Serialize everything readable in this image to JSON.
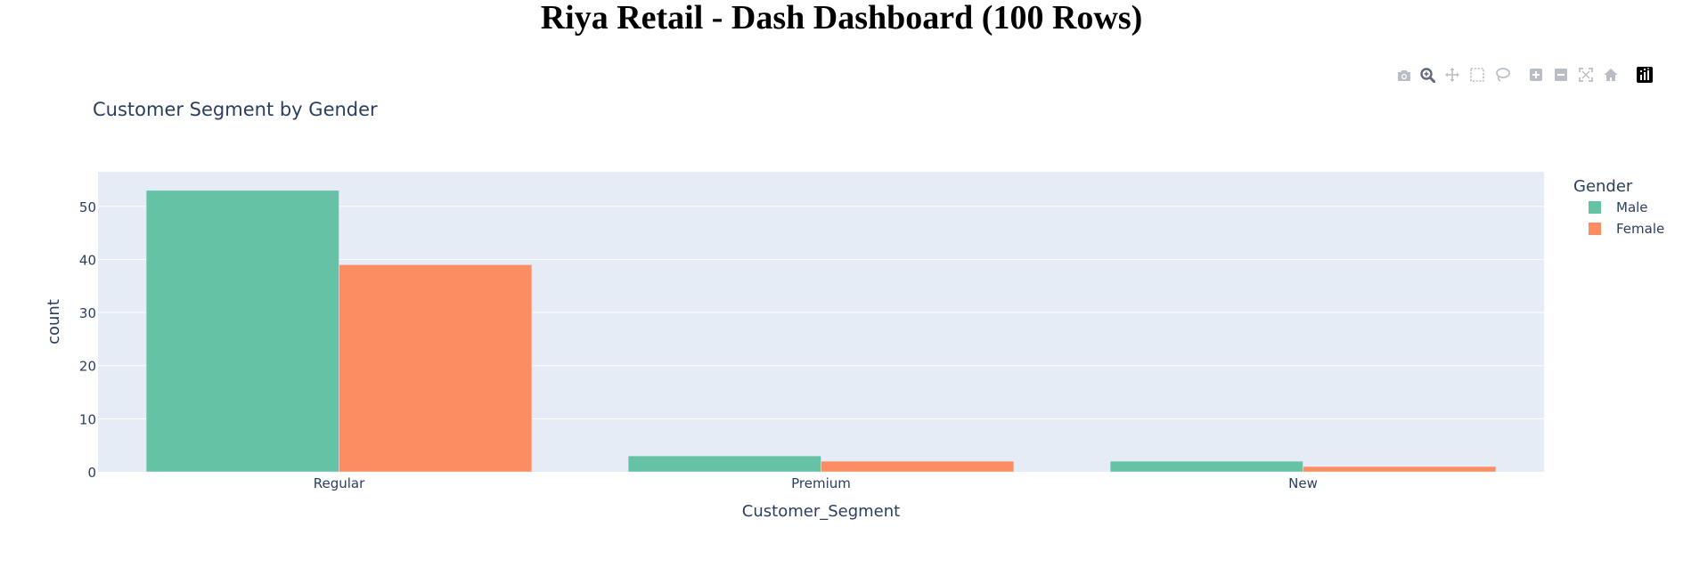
{
  "page": {
    "title": "Riya Retail - Dash Dashboard (100 Rows)"
  },
  "modebar": {
    "buttons": [
      {
        "icon": "camera-icon",
        "tooltip": "Download plot as a png"
      },
      {
        "icon": "zoom-icon",
        "tooltip": "Zoom",
        "active": true
      },
      {
        "icon": "pan-icon",
        "tooltip": "Pan"
      },
      {
        "icon": "box-select-icon",
        "tooltip": "Box Select"
      },
      {
        "icon": "lasso-select-icon",
        "tooltip": "Lasso Select"
      },
      {
        "icon": "zoom-in-icon",
        "tooltip": "Zoom in"
      },
      {
        "icon": "zoom-out-icon",
        "tooltip": "Zoom out"
      },
      {
        "icon": "autoscale-icon",
        "tooltip": "Autoscale"
      },
      {
        "icon": "reset-axes-icon",
        "tooltip": "Reset axes"
      },
      {
        "icon": "plotly-logo-icon",
        "tooltip": "Produced with Plotly"
      }
    ],
    "colors": {
      "icon": "#b9bec6",
      "icon_active": "#626b7a",
      "logo_bg": "#000000"
    }
  },
  "chart_data": {
    "type": "bar",
    "title": "Customer Segment by Gender",
    "xlabel": "Customer_Segment",
    "ylabel": "count",
    "categories": [
      "Regular",
      "Premium",
      "New"
    ],
    "series": [
      {
        "name": "Male",
        "values": [
          53,
          3,
          2
        ],
        "color": "#66c2a5"
      },
      {
        "name": "Female",
        "values": [
          39,
          2,
          1
        ],
        "color": "#fc8d62"
      }
    ],
    "ylim": [
      0,
      56.5
    ],
    "yticks": [
      0,
      10,
      20,
      30,
      40,
      50
    ],
    "legend_title": "Gender",
    "legend_position": "top-right",
    "barmode": "group",
    "grid": true,
    "plot_bg": "#e5ecf6"
  }
}
